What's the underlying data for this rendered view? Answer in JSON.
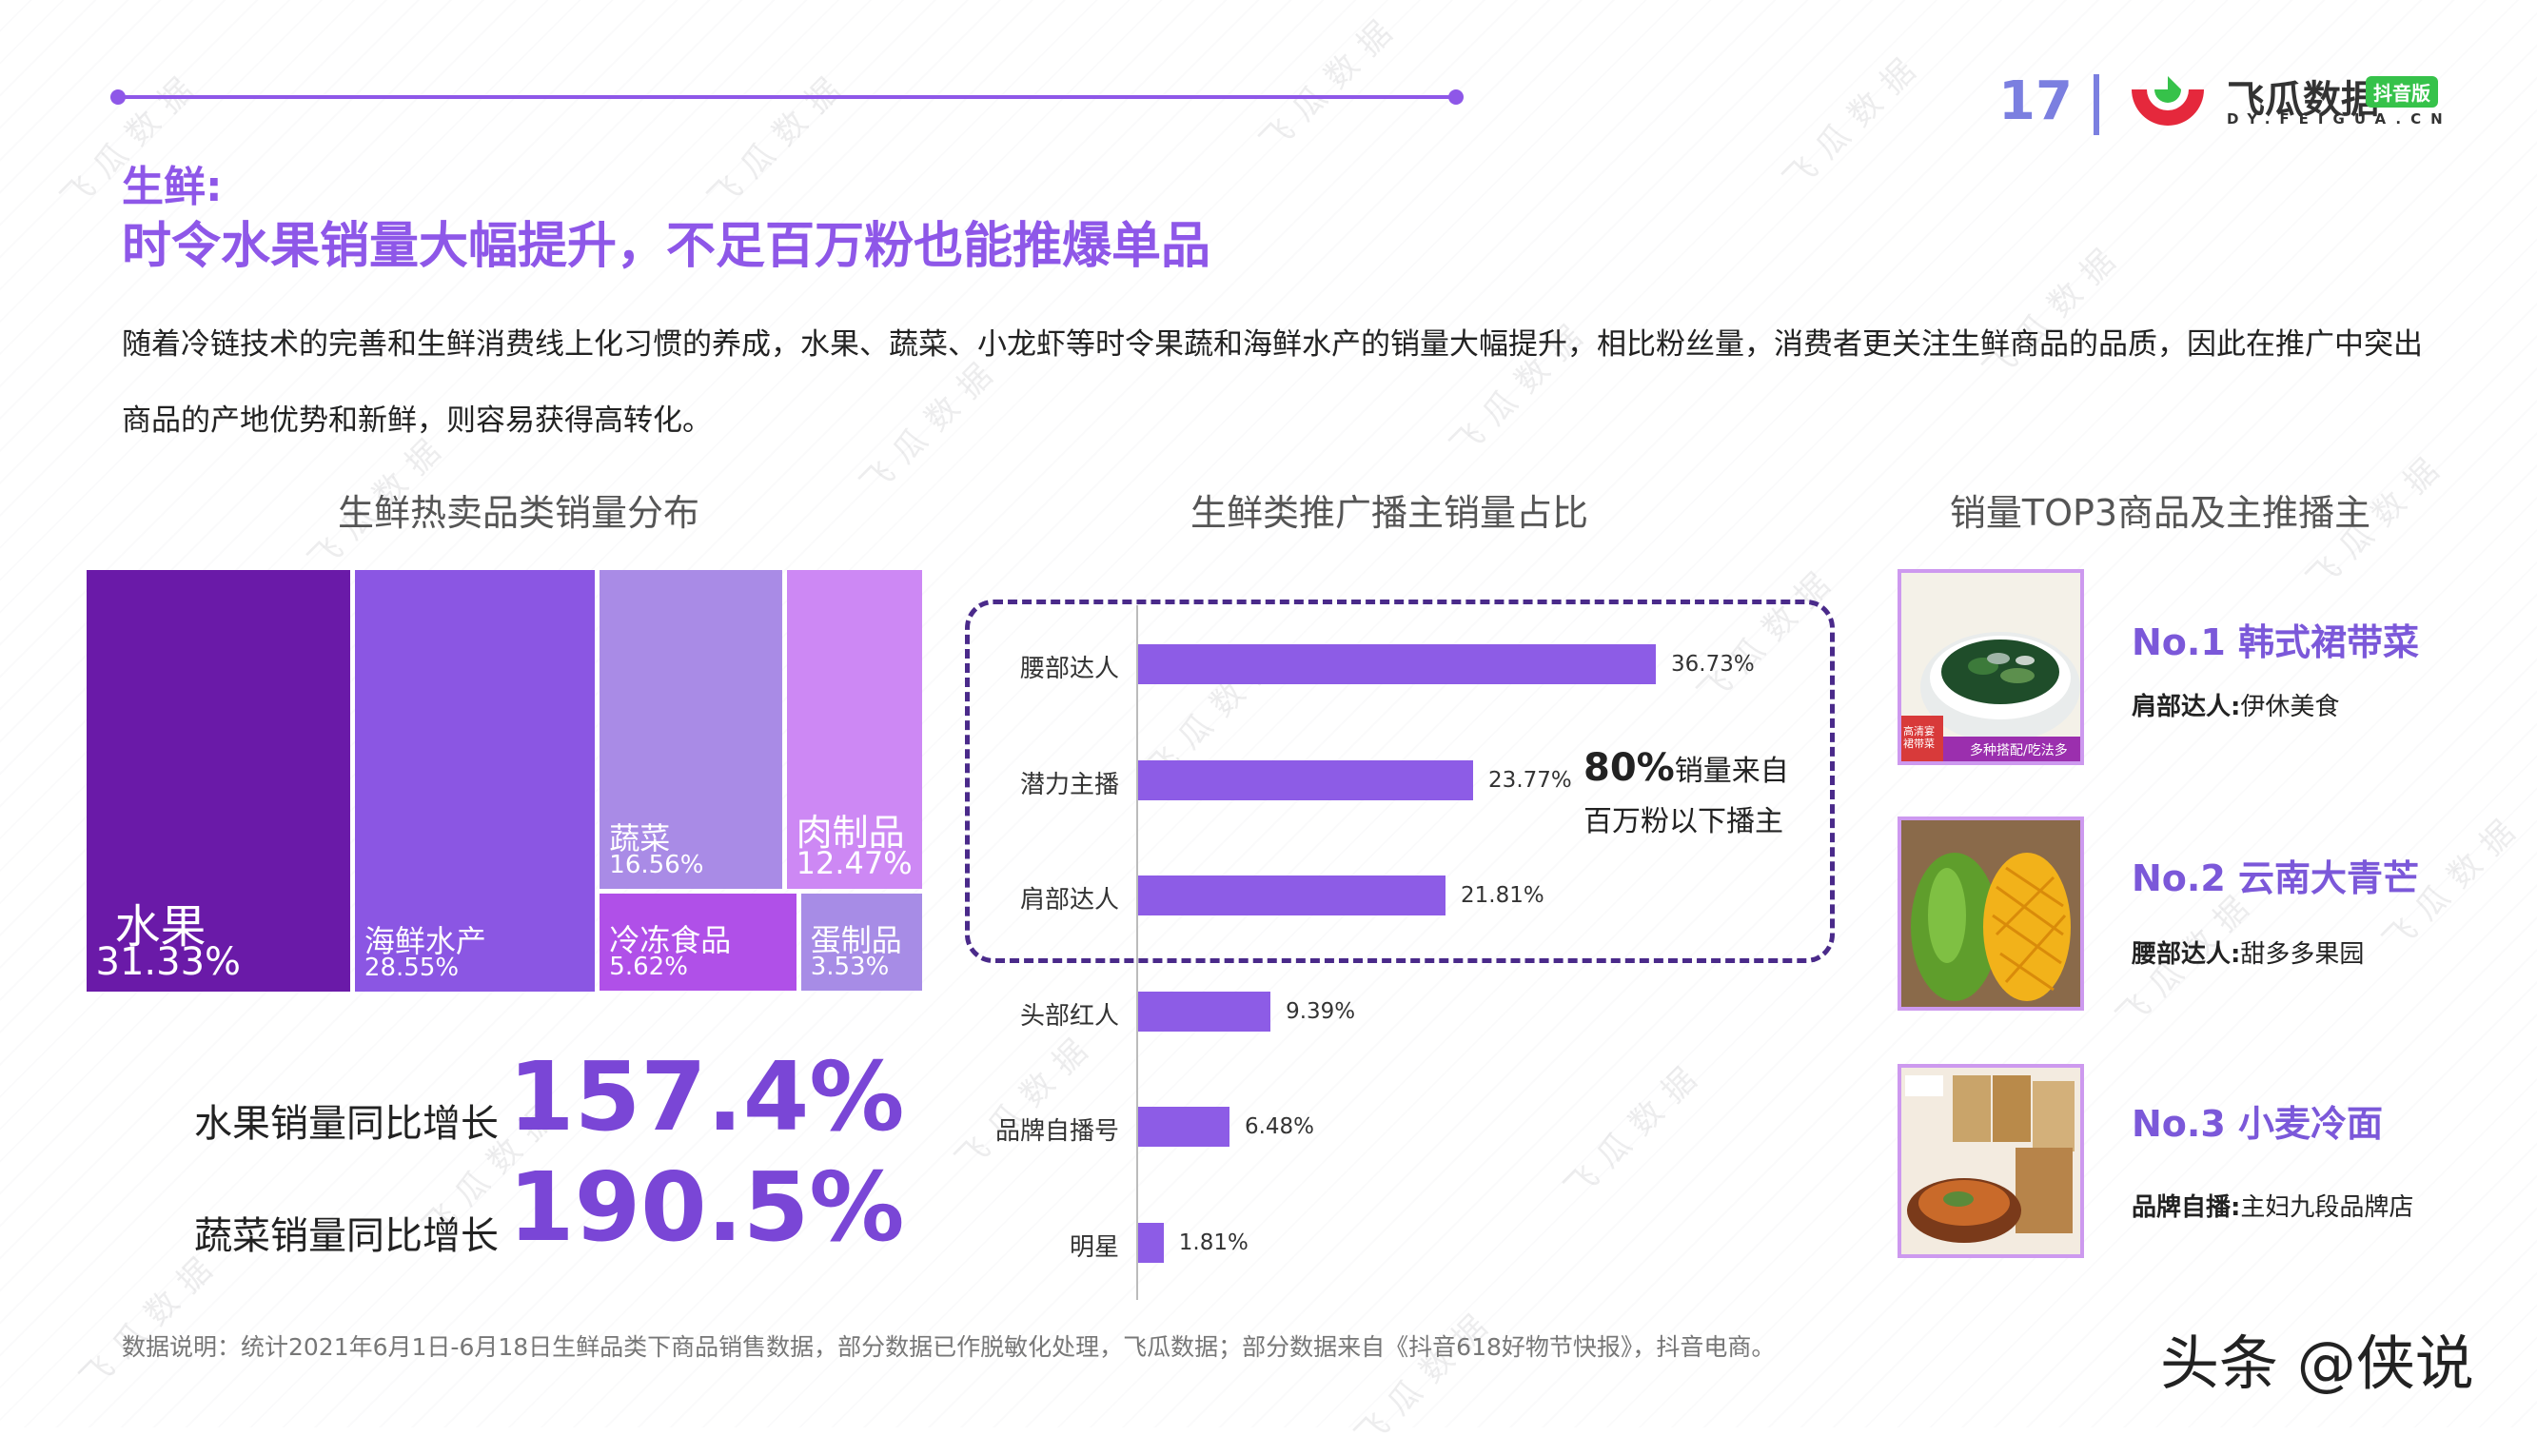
{
  "header": {
    "page_number": "17",
    "brand_name": "飞瓜数据",
    "brand_badge": "抖音版",
    "brand_url": "DY.FEIGUA.CN",
    "watermark_text": "飞瓜数据"
  },
  "section_label": "生鲜:",
  "headline": "时令水果销量大幅提升，不足百万粉也能推爆单品",
  "description": "随着冷链技术的完善和生鲜消费线上化习惯的养成，水果、蔬菜、小龙虾等时令果蔬和海鲜水产的销量大幅提升，相比粉丝量，消费者更关注生鲜商品的品质，因此在推广中突出商品的产地优势和新鲜，则容易获得高转化。",
  "colors": {
    "accent": "#8e57e8",
    "bar": "#8d5ce6",
    "treemap": [
      "#6a1aa8",
      "#8b56e3",
      "#a98be6",
      "#cd88f4",
      "#b050e8",
      "#a78ce6"
    ]
  },
  "treemap": {
    "title": "生鲜热卖品类销量分布"
  },
  "growth": [
    {
      "label": "水果销量同比增长",
      "value": "157.4%"
    },
    {
      "label": "蔬菜销量同比增长",
      "value": "190.5%"
    }
  ],
  "bar_chart": {
    "title": "生鲜类推广播主销量占比",
    "callout_number": "80%",
    "callout_line1": "销量来自",
    "callout_line2": "百万粉以下播主"
  },
  "top3": {
    "title": "销量TOP3商品及主推播主",
    "items": [
      {
        "rank_title": "No.1 韩式裙带菜",
        "host_type": "肩部达人:",
        "host_name": "伊休美食",
        "icon": "seaweed-bowl-image",
        "img_text_1": "高清宴裙带菜",
        "img_text_2": "多种搭配/吃法多样"
      },
      {
        "rank_title": "No.2 云南大青芒",
        "host_type": "腰部达人:",
        "host_name": "甜多多果园",
        "icon": "mango-image"
      },
      {
        "rank_title": "No.3 小麦冷面",
        "host_type": "品牌自播:",
        "host_name": "主妇九段品牌店",
        "icon": "cold-noodle-image"
      }
    ]
  },
  "footnote": "数据说明：统计2021年6月1日-6月18日生鲜品类下商品销售数据，部分数据已作脱敏化处理，飞瓜数据；部分数据来自《抖音618好物节快报》，抖音电商。",
  "credit": "头条 @侠说",
  "chart_data": [
    {
      "type": "treemap",
      "title": "生鲜热卖品类销量分布",
      "categories": [
        "水果",
        "海鲜水产",
        "蔬菜",
        "肉制品",
        "冷冻食品",
        "蛋制品"
      ],
      "values": [
        31.33,
        28.55,
        16.56,
        12.47,
        5.62,
        3.53
      ],
      "labels": [
        "31.33%",
        "28.55%",
        "16.56%",
        "12.47%",
        "5.62%",
        "3.53%"
      ]
    },
    {
      "type": "bar",
      "orientation": "horizontal",
      "title": "生鲜类推广播主销量占比",
      "categories": [
        "腰部达人",
        "潜力主播",
        "肩部达人",
        "头部红人",
        "品牌自播号",
        "明星"
      ],
      "values": [
        36.73,
        23.77,
        21.81,
        9.39,
        6.48,
        1.81
      ],
      "labels": [
        "36.73%",
        "23.77%",
        "21.81%",
        "9.39%",
        "6.48%",
        "1.81%"
      ],
      "xlim": [
        0,
        40
      ]
    }
  ]
}
